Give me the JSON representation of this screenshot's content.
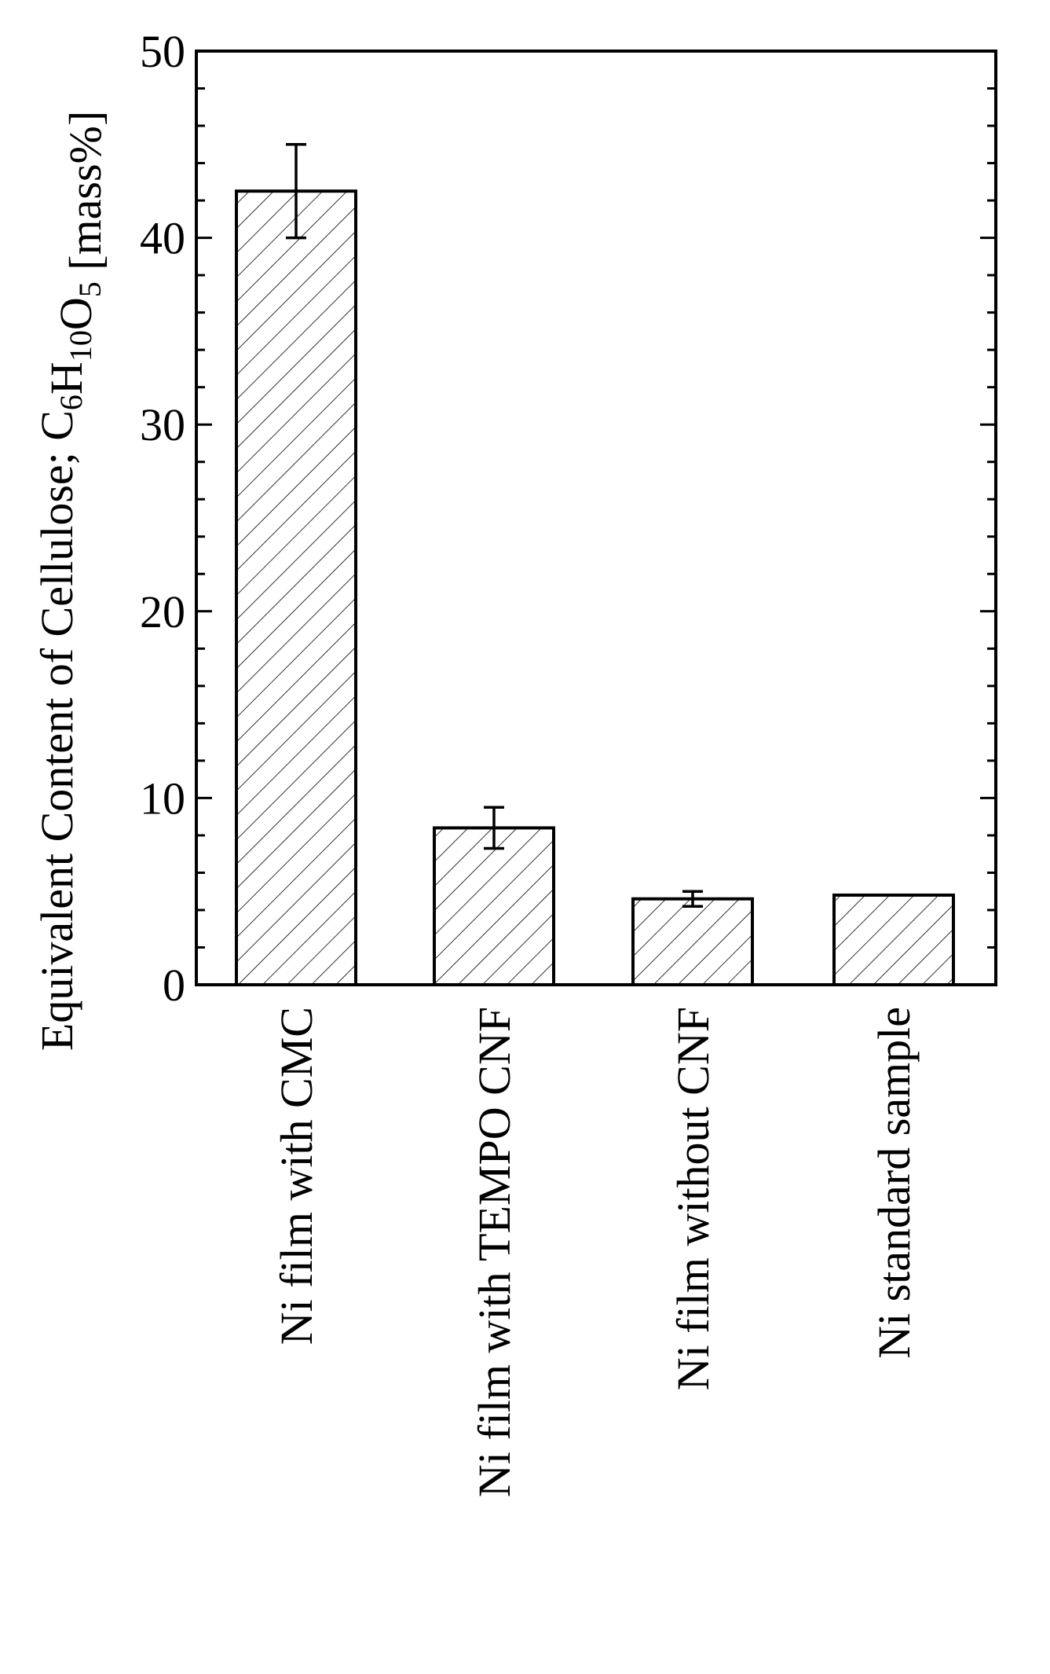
{
  "chart_data": {
    "type": "bar",
    "ylabel_parts": [
      {
        "text": "Equivalent Content of Cellulose; C",
        "sub": false
      },
      {
        "text": "6",
        "sub": true
      },
      {
        "text": "H",
        "sub": false
      },
      {
        "text": "10",
        "sub": true
      },
      {
        "text": "O",
        "sub": false
      },
      {
        "text": "5",
        "sub": true
      },
      {
        "text": " [mass%]",
        "sub": false
      }
    ],
    "ylim": [
      0,
      50
    ],
    "yticks": [
      0,
      10,
      20,
      30,
      40,
      50
    ],
    "categories": [
      "Ni film with CMC",
      "Ni film with TEMPO CNF",
      "Ni film without CNF",
      "Ni standard sample"
    ],
    "values": [
      42.5,
      8.4,
      4.6,
      4.8
    ],
    "errors": [
      {
        "low": 40.0,
        "high": 45.0
      },
      {
        "low": 7.3,
        "high": 9.5
      },
      {
        "low": 4.2,
        "high": 5.0
      },
      null
    ],
    "bar_fill": "hatched",
    "grid": false,
    "legend": "none"
  }
}
